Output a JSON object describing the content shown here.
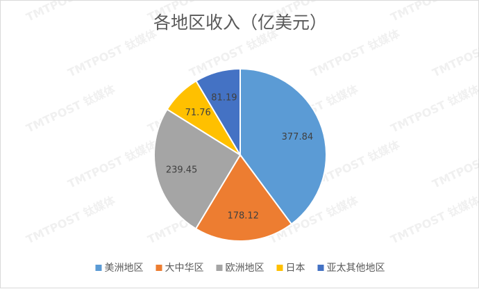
{
  "chart_data": {
    "type": "pie",
    "title": "各地区收入（亿美元）",
    "categories": [
      "美洲地区",
      "大中华区",
      "欧洲地区",
      "日本",
      "亚太其他地区"
    ],
    "values": [
      377.84,
      178.12,
      239.45,
      71.76,
      81.19
    ],
    "value_labels": [
      "377.84",
      "178.12",
      "239.45",
      "71.76",
      "81.19"
    ],
    "colors": [
      "#5b9bd5",
      "#ed7d31",
      "#a5a5a5",
      "#ffc000",
      "#4472c4"
    ],
    "legend_position": "bottom",
    "start_angle": "12 o'clock, clockwise"
  },
  "watermark": "TMTPOST 钛媒体"
}
